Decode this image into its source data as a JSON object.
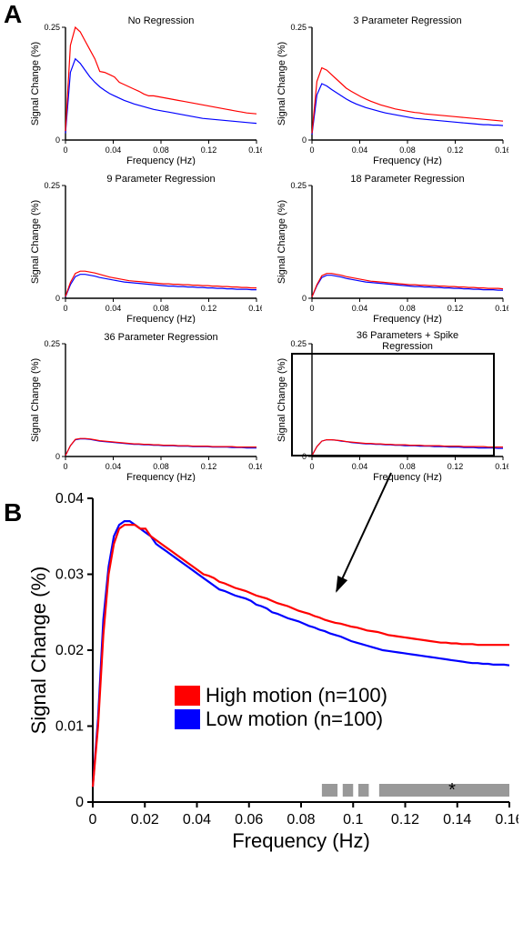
{
  "colors": {
    "high": "#ff0000",
    "low": "#0000ff",
    "axis": "#000000",
    "bg": "#ffffff",
    "sigbar": "#999999"
  },
  "line_width_small": 1.2,
  "line_width_big": 2.2,
  "panelA": {
    "label": "A",
    "x_range": [
      0,
      0.16
    ],
    "y_range": [
      0,
      0.25
    ],
    "x_ticks": [
      0,
      0.04,
      0.08,
      0.12,
      0.16
    ],
    "y_ticks": [
      0,
      0.25
    ],
    "x_axis_label": "Frequency (Hz)",
    "y_axis_label": "Signal Change (%)",
    "axis_fontsize": 11,
    "tick_fontsize": 9,
    "title_fontsize": 11,
    "highlight_index": 5,
    "subplots": [
      {
        "title": "No Regression",
        "high": [
          0.02,
          0.21,
          0.25,
          0.24,
          0.22,
          0.2,
          0.18,
          0.152,
          0.15,
          0.145,
          0.14,
          0.128,
          0.123,
          0.118,
          0.113,
          0.108,
          0.102,
          0.098,
          0.098,
          0.096,
          0.094,
          0.092,
          0.09,
          0.088,
          0.086,
          0.084,
          0.082,
          0.08,
          0.078,
          0.076,
          0.074,
          0.072,
          0.07,
          0.068,
          0.066,
          0.064,
          0.062,
          0.06,
          0.059,
          0.058
        ],
        "low": [
          0.015,
          0.15,
          0.18,
          0.17,
          0.155,
          0.14,
          0.128,
          0.118,
          0.11,
          0.103,
          0.098,
          0.093,
          0.088,
          0.084,
          0.08,
          0.077,
          0.074,
          0.071,
          0.068,
          0.066,
          0.064,
          0.062,
          0.06,
          0.058,
          0.056,
          0.054,
          0.052,
          0.05,
          0.048,
          0.047,
          0.046,
          0.045,
          0.044,
          0.043,
          0.042,
          0.041,
          0.04,
          0.039,
          0.038,
          0.037
        ]
      },
      {
        "title": "3 Parameter Regression",
        "high": [
          0.015,
          0.13,
          0.16,
          0.155,
          0.145,
          0.135,
          0.125,
          0.115,
          0.108,
          0.102,
          0.096,
          0.091,
          0.086,
          0.082,
          0.078,
          0.075,
          0.072,
          0.069,
          0.067,
          0.065,
          0.063,
          0.061,
          0.06,
          0.058,
          0.057,
          0.056,
          0.055,
          0.054,
          0.053,
          0.052,
          0.051,
          0.05,
          0.049,
          0.048,
          0.047,
          0.046,
          0.045,
          0.044,
          0.043,
          0.042
        ],
        "low": [
          0.012,
          0.1,
          0.125,
          0.12,
          0.112,
          0.105,
          0.098,
          0.091,
          0.085,
          0.08,
          0.076,
          0.072,
          0.069,
          0.066,
          0.063,
          0.06,
          0.058,
          0.056,
          0.054,
          0.052,
          0.05,
          0.048,
          0.047,
          0.046,
          0.045,
          0.044,
          0.043,
          0.042,
          0.041,
          0.04,
          0.039,
          0.038,
          0.037,
          0.036,
          0.035,
          0.034,
          0.034,
          0.033,
          0.033,
          0.032
        ]
      },
      {
        "title": "9 Parameter Regression",
        "high": [
          0.004,
          0.035,
          0.055,
          0.06,
          0.06,
          0.058,
          0.056,
          0.053,
          0.05,
          0.047,
          0.045,
          0.043,
          0.041,
          0.039,
          0.038,
          0.037,
          0.036,
          0.035,
          0.034,
          0.033,
          0.032,
          0.032,
          0.031,
          0.031,
          0.03,
          0.03,
          0.029,
          0.029,
          0.028,
          0.028,
          0.027,
          0.027,
          0.026,
          0.026,
          0.025,
          0.025,
          0.024,
          0.024,
          0.023,
          0.023
        ],
        "low": [
          0.003,
          0.03,
          0.048,
          0.053,
          0.053,
          0.051,
          0.049,
          0.046,
          0.044,
          0.042,
          0.04,
          0.038,
          0.036,
          0.035,
          0.034,
          0.033,
          0.032,
          0.031,
          0.03,
          0.029,
          0.028,
          0.027,
          0.027,
          0.026,
          0.026,
          0.025,
          0.025,
          0.024,
          0.024,
          0.023,
          0.023,
          0.022,
          0.022,
          0.021,
          0.021,
          0.02,
          0.02,
          0.02,
          0.019,
          0.019
        ]
      },
      {
        "title": "18 Parameter Regression",
        "high": [
          0.003,
          0.03,
          0.05,
          0.055,
          0.055,
          0.053,
          0.051,
          0.048,
          0.046,
          0.044,
          0.042,
          0.04,
          0.038,
          0.037,
          0.036,
          0.035,
          0.034,
          0.033,
          0.032,
          0.031,
          0.03,
          0.03,
          0.029,
          0.029,
          0.028,
          0.028,
          0.027,
          0.027,
          0.026,
          0.026,
          0.025,
          0.025,
          0.024,
          0.024,
          0.023,
          0.023,
          0.022,
          0.022,
          0.022,
          0.021
        ],
        "low": [
          0.003,
          0.028,
          0.046,
          0.051,
          0.051,
          0.049,
          0.047,
          0.044,
          0.042,
          0.04,
          0.038,
          0.036,
          0.035,
          0.034,
          0.033,
          0.032,
          0.031,
          0.03,
          0.029,
          0.028,
          0.027,
          0.026,
          0.026,
          0.025,
          0.025,
          0.024,
          0.024,
          0.023,
          0.023,
          0.022,
          0.022,
          0.021,
          0.021,
          0.02,
          0.02,
          0.019,
          0.019,
          0.019,
          0.018,
          0.018
        ]
      },
      {
        "title": "36 Parameter Regression",
        "high": [
          0.002,
          0.024,
          0.038,
          0.04,
          0.04,
          0.039,
          0.037,
          0.035,
          0.034,
          0.033,
          0.032,
          0.031,
          0.03,
          0.029,
          0.028,
          0.028,
          0.027,
          0.027,
          0.026,
          0.026,
          0.025,
          0.025,
          0.025,
          0.024,
          0.024,
          0.024,
          0.023,
          0.023,
          0.023,
          0.023,
          0.022,
          0.022,
          0.022,
          0.022,
          0.022,
          0.021,
          0.021,
          0.021,
          0.021,
          0.021
        ],
        "low": [
          0.002,
          0.024,
          0.037,
          0.039,
          0.039,
          0.038,
          0.036,
          0.034,
          0.033,
          0.032,
          0.031,
          0.03,
          0.029,
          0.028,
          0.027,
          0.027,
          0.026,
          0.026,
          0.025,
          0.025,
          0.024,
          0.024,
          0.024,
          0.023,
          0.023,
          0.023,
          0.022,
          0.022,
          0.022,
          0.022,
          0.021,
          0.021,
          0.021,
          0.021,
          0.02,
          0.02,
          0.02,
          0.019,
          0.019,
          0.019
        ]
      },
      {
        "title": "36 Parameters + Spike Regression",
        "high": [
          0.002,
          0.022,
          0.034,
          0.037,
          0.037,
          0.036,
          0.035,
          0.033,
          0.032,
          0.031,
          0.03,
          0.029,
          0.029,
          0.028,
          0.028,
          0.027,
          0.027,
          0.026,
          0.026,
          0.026,
          0.025,
          0.025,
          0.025,
          0.024,
          0.024,
          0.024,
          0.024,
          0.023,
          0.023,
          0.023,
          0.023,
          0.022,
          0.022,
          0.022,
          0.022,
          0.022,
          0.021,
          0.021,
          0.021,
          0.021
        ],
        "low": [
          0.002,
          0.022,
          0.034,
          0.037,
          0.037,
          0.036,
          0.034,
          0.033,
          0.031,
          0.03,
          0.029,
          0.028,
          0.028,
          0.027,
          0.027,
          0.026,
          0.026,
          0.025,
          0.025,
          0.024,
          0.024,
          0.024,
          0.023,
          0.023,
          0.023,
          0.022,
          0.022,
          0.022,
          0.021,
          0.021,
          0.021,
          0.02,
          0.02,
          0.02,
          0.019,
          0.019,
          0.019,
          0.019,
          0.018,
          0.018
        ]
      }
    ]
  },
  "panelB": {
    "label": "B",
    "x_range": [
      0,
      0.16
    ],
    "y_range": [
      0,
      0.04
    ],
    "x_ticks": [
      0,
      0.02,
      0.04,
      0.06,
      0.08,
      0.1,
      0.12,
      0.14,
      0.16
    ],
    "y_ticks": [
      0,
      0.01,
      0.02,
      0.03,
      0.04
    ],
    "x_axis_label": "Frequency (Hz)",
    "y_axis_label": "Signal Change (%)",
    "axis_fontsize": 22,
    "tick_fontsize": 16,
    "high": [
      0.002,
      0.01,
      0.022,
      0.03,
      0.034,
      0.036,
      0.0365,
      0.0365,
      0.0365,
      0.036,
      0.036,
      0.035,
      0.0345,
      0.034,
      0.0335,
      0.033,
      0.0325,
      0.032,
      0.0315,
      0.031,
      0.0305,
      0.03,
      0.0298,
      0.0295,
      0.029,
      0.0288,
      0.0285,
      0.0282,
      0.028,
      0.0278,
      0.0275,
      0.0272,
      0.027,
      0.0268,
      0.0265,
      0.0262,
      0.026,
      0.0258,
      0.0255,
      0.0252,
      0.025,
      0.0248,
      0.0245,
      0.0243,
      0.024,
      0.0238,
      0.0236,
      0.0235,
      0.0233,
      0.0231,
      0.023,
      0.0228,
      0.0226,
      0.0225,
      0.0224,
      0.0222,
      0.022,
      0.0219,
      0.0218,
      0.0217,
      0.0216,
      0.0215,
      0.0214,
      0.0213,
      0.0212,
      0.0211,
      0.021,
      0.021,
      0.0209,
      0.0209,
      0.0208,
      0.0208,
      0.0208,
      0.0207,
      0.0207,
      0.0207,
      0.0207,
      0.0207,
      0.0207,
      0.0207
    ],
    "low": [
      0.002,
      0.011,
      0.024,
      0.031,
      0.035,
      0.0365,
      0.037,
      0.037,
      0.0365,
      0.036,
      0.0355,
      0.035,
      0.034,
      0.0335,
      0.033,
      0.0325,
      0.032,
      0.0315,
      0.031,
      0.0305,
      0.03,
      0.0295,
      0.029,
      0.0285,
      0.028,
      0.0278,
      0.0275,
      0.0272,
      0.027,
      0.0268,
      0.0265,
      0.026,
      0.0258,
      0.0255,
      0.025,
      0.0248,
      0.0245,
      0.0242,
      0.024,
      0.0238,
      0.0235,
      0.0232,
      0.023,
      0.0227,
      0.0225,
      0.0222,
      0.022,
      0.0218,
      0.0215,
      0.0212,
      0.021,
      0.0208,
      0.0206,
      0.0204,
      0.0202,
      0.02,
      0.0199,
      0.0198,
      0.0197,
      0.0196,
      0.0195,
      0.0194,
      0.0193,
      0.0192,
      0.0191,
      0.019,
      0.0189,
      0.0188,
      0.0187,
      0.0186,
      0.0185,
      0.0184,
      0.0183,
      0.0183,
      0.0182,
      0.0182,
      0.0181,
      0.0181,
      0.0181,
      0.018
    ],
    "legend": {
      "high_label": "High motion (n=100)",
      "low_label": "Low motion (n=100)"
    },
    "sig_bars": [
      [
        0.088,
        0.094
      ],
      [
        0.096,
        0.1
      ],
      [
        0.102,
        0.106
      ],
      [
        0.11,
        0.16
      ]
    ],
    "sig_star_x": 0.138,
    "sig_star": "*"
  }
}
